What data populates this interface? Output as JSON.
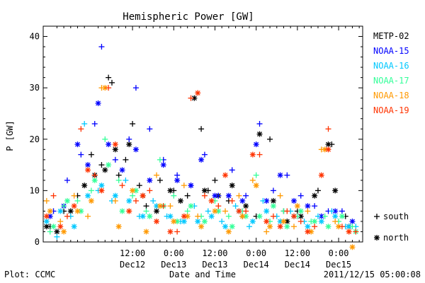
{
  "chart_data": {
    "type": "scatter",
    "title": "Hemispheric Power [GW]",
    "ylabel": "P [GW]",
    "xlabel": "Date and Time",
    "ylim": [
      0,
      42
    ],
    "yticks": [
      0,
      10,
      20,
      30,
      40
    ],
    "xlim_hours": [
      -14,
      79
    ],
    "x_unit": "hours from 2011-12-12 00:00 UT",
    "xticks": [
      {
        "x": 12,
        "time": "12:00",
        "date": "Dec12"
      },
      {
        "x": 24,
        "time": "0:00",
        "date": "Dec13"
      },
      {
        "x": 36,
        "time": "12:00",
        "date": "Dec13"
      },
      {
        "x": 48,
        "time": "0:00",
        "date": "Dec14"
      },
      {
        "x": 60,
        "time": "12:00",
        "date": "Dec14"
      },
      {
        "x": 72,
        "time": "0:00",
        "date": "Dec15"
      }
    ],
    "grid": false,
    "legend_position": "right",
    "markers": {
      "south": "+",
      "north": "*"
    },
    "marker_legend": [
      {
        "symbol": "+",
        "label": "south"
      },
      {
        "symbol": "*",
        "label": "north"
      }
    ],
    "footer_left": "Plot: CCMC",
    "footer_right": "2011/12/15 05:00:08",
    "series": [
      {
        "name": "METP-02",
        "color": "#000000",
        "south": [
          [
            -12,
            3
          ],
          [
            -8,
            6
          ],
          [
            -4,
            9
          ],
          [
            0,
            17
          ],
          [
            3,
            15
          ],
          [
            5,
            32
          ],
          [
            6,
            31
          ],
          [
            8,
            13
          ],
          [
            10,
            16
          ],
          [
            12,
            23
          ],
          [
            14,
            11
          ],
          [
            16,
            7
          ],
          [
            20,
            12
          ],
          [
            24,
            10
          ],
          [
            28,
            9
          ],
          [
            32,
            22
          ],
          [
            34,
            10
          ],
          [
            36,
            12
          ],
          [
            40,
            8
          ],
          [
            44,
            5
          ],
          [
            48,
            5
          ],
          [
            52,
            20
          ],
          [
            56,
            6
          ],
          [
            60,
            6
          ],
          [
            66,
            10
          ],
          [
            70,
            19
          ],
          [
            74,
            5
          ]
        ],
        "north": [
          [
            -13,
            3
          ],
          [
            -10,
            2
          ],
          [
            -6,
            6
          ],
          [
            -2,
            11
          ],
          [
            1,
            13
          ],
          [
            4,
            14
          ],
          [
            7,
            18
          ],
          [
            11,
            19
          ],
          [
            15,
            9
          ],
          [
            19,
            6
          ],
          [
            23,
            10
          ],
          [
            26,
            8
          ],
          [
            30,
            28
          ],
          [
            33,
            10
          ],
          [
            37,
            9
          ],
          [
            41,
            11
          ],
          [
            45,
            7
          ],
          [
            49,
            21
          ],
          [
            53,
            8
          ],
          [
            57,
            4
          ],
          [
            61,
            5
          ],
          [
            65,
            9
          ],
          [
            69,
            19
          ],
          [
            71,
            10
          ],
          [
            75,
            3
          ]
        ]
      },
      {
        "name": "NOAA-15",
        "color": "#0000ff",
        "south": [
          [
            -11,
            6
          ],
          [
            -7,
            12
          ],
          [
            -3,
            17
          ],
          [
            1,
            23
          ],
          [
            3,
            38
          ],
          [
            7,
            16
          ],
          [
            11,
            20
          ],
          [
            13,
            30
          ],
          [
            17,
            22
          ],
          [
            21,
            16
          ],
          [
            25,
            13
          ],
          [
            29,
            11
          ],
          [
            33,
            17
          ],
          [
            37,
            9
          ],
          [
            41,
            14
          ],
          [
            45,
            9
          ],
          [
            49,
            23
          ],
          [
            53,
            10
          ],
          [
            57,
            13
          ],
          [
            61,
            9
          ],
          [
            65,
            7
          ],
          [
            69,
            6
          ],
          [
            73,
            6
          ]
        ],
        "north": [
          [
            -12,
            5
          ],
          [
            -8,
            7
          ],
          [
            -4,
            19
          ],
          [
            -1,
            15
          ],
          [
            2,
            27
          ],
          [
            5,
            19
          ],
          [
            9,
            14
          ],
          [
            13,
            18
          ],
          [
            17,
            12
          ],
          [
            21,
            15
          ],
          [
            25,
            12
          ],
          [
            29,
            11
          ],
          [
            32,
            16
          ],
          [
            36,
            9
          ],
          [
            40,
            9
          ],
          [
            44,
            8
          ],
          [
            48,
            19
          ],
          [
            51,
            8
          ],
          [
            55,
            13
          ],
          [
            59,
            8
          ],
          [
            63,
            7
          ],
          [
            67,
            5
          ],
          [
            71,
            6
          ],
          [
            76,
            4
          ]
        ]
      },
      {
        "name": "NOAA-16",
        "color": "#00c8ff",
        "south": [
          [
            -10,
            1
          ],
          [
            -6,
            5
          ],
          [
            -2,
            23
          ],
          [
            2,
            10
          ],
          [
            6,
            8
          ],
          [
            10,
            12
          ],
          [
            14,
            5
          ],
          [
            18,
            8
          ],
          [
            22,
            5
          ],
          [
            26,
            4
          ],
          [
            30,
            7
          ],
          [
            34,
            6
          ],
          [
            38,
            4
          ],
          [
            42,
            7
          ],
          [
            46,
            3
          ],
          [
            50,
            8
          ],
          [
            54,
            5
          ],
          [
            58,
            6
          ],
          [
            62,
            4
          ],
          [
            66,
            5
          ],
          [
            70,
            6
          ],
          [
            74,
            3
          ],
          [
            77,
            3
          ]
        ],
        "north": [
          [
            -13,
            4
          ],
          [
            -9,
            6
          ],
          [
            -5,
            3
          ],
          [
            -1,
            9
          ],
          [
            3,
            11
          ],
          [
            7,
            9
          ],
          [
            11,
            8
          ],
          [
            15,
            5
          ],
          [
            19,
            7
          ],
          [
            23,
            5
          ],
          [
            27,
            4
          ],
          [
            31,
            4
          ],
          [
            35,
            5
          ],
          [
            39,
            3
          ],
          [
            43,
            6
          ],
          [
            47,
            4
          ],
          [
            51,
            6
          ],
          [
            55,
            4
          ],
          [
            59,
            5
          ],
          [
            63,
            3
          ],
          [
            67,
            4
          ],
          [
            71,
            5
          ],
          [
            75,
            3
          ]
        ]
      },
      {
        "name": "NOAA-17",
        "color": "#33ff99",
        "south": [
          [
            -12,
            2
          ],
          [
            -8,
            7
          ],
          [
            -4,
            8
          ],
          [
            0,
            10
          ],
          [
            4,
            20
          ],
          [
            8,
            12
          ],
          [
            12,
            9
          ],
          [
            16,
            6
          ],
          [
            20,
            16
          ],
          [
            24,
            9
          ],
          [
            28,
            6
          ],
          [
            32,
            5
          ],
          [
            36,
            8
          ],
          [
            40,
            5
          ],
          [
            44,
            6
          ],
          [
            48,
            13
          ],
          [
            52,
            4
          ],
          [
            56,
            6
          ],
          [
            60,
            5
          ],
          [
            64,
            4
          ],
          [
            68,
            5
          ],
          [
            72,
            4
          ],
          [
            76,
            3
          ]
        ],
        "north": [
          [
            -11,
            3
          ],
          [
            -7,
            8
          ],
          [
            -3,
            6
          ],
          [
            1,
            12
          ],
          [
            5,
            15
          ],
          [
            9,
            6
          ],
          [
            13,
            10
          ],
          [
            17,
            5
          ],
          [
            21,
            7
          ],
          [
            25,
            4
          ],
          [
            29,
            7
          ],
          [
            33,
            4
          ],
          [
            37,
            6
          ],
          [
            41,
            3
          ],
          [
            45,
            5
          ],
          [
            49,
            5
          ],
          [
            53,
            7
          ],
          [
            57,
            3
          ],
          [
            61,
            6
          ],
          [
            65,
            4
          ],
          [
            69,
            3
          ],
          [
            73,
            5
          ],
          [
            77,
            2
          ]
        ]
      },
      {
        "name": "NOAA-18",
        "color": "#ff9900",
        "south": [
          [
            -13,
            8
          ],
          [
            -9,
            4
          ],
          [
            -5,
            9
          ],
          [
            -1,
            5
          ],
          [
            3,
            30
          ],
          [
            7,
            8
          ],
          [
            11,
            6
          ],
          [
            15,
            9
          ],
          [
            19,
            13
          ],
          [
            23,
            7
          ],
          [
            27,
            11
          ],
          [
            31,
            5
          ],
          [
            35,
            8
          ],
          [
            39,
            6
          ],
          [
            43,
            9
          ],
          [
            47,
            12
          ],
          [
            51,
            2
          ],
          [
            55,
            9
          ],
          [
            59,
            3
          ],
          [
            63,
            6
          ],
          [
            67,
            18
          ],
          [
            71,
            4
          ],
          [
            75,
            2
          ]
        ],
        "north": [
          [
            -12,
            6
          ],
          [
            -8,
            2
          ],
          [
            -4,
            6
          ],
          [
            0,
            8
          ],
          [
            4,
            30
          ],
          [
            8,
            3
          ],
          [
            12,
            10
          ],
          [
            16,
            2
          ],
          [
            20,
            7
          ],
          [
            24,
            4
          ],
          [
            28,
            5
          ],
          [
            32,
            3
          ],
          [
            36,
            6
          ],
          [
            40,
            2
          ],
          [
            44,
            5
          ],
          [
            48,
            11
          ],
          [
            52,
            3
          ],
          [
            56,
            4
          ],
          [
            60,
            7
          ],
          [
            64,
            2
          ],
          [
            68,
            18
          ],
          [
            72,
            3
          ],
          [
            76,
            -1
          ]
        ]
      },
      {
        "name": "NOAA-19",
        "color": "#ff3300",
        "south": [
          [
            -11,
            9
          ],
          [
            -7,
            5
          ],
          [
            -3,
            22
          ],
          [
            1,
            13
          ],
          [
            5,
            30
          ],
          [
            9,
            11
          ],
          [
            13,
            8
          ],
          [
            17,
            10
          ],
          [
            21,
            7
          ],
          [
            25,
            2
          ],
          [
            29,
            28
          ],
          [
            33,
            9
          ],
          [
            37,
            7
          ],
          [
            41,
            8
          ],
          [
            45,
            6
          ],
          [
            49,
            17
          ],
          [
            53,
            5
          ],
          [
            57,
            6
          ],
          [
            61,
            4
          ],
          [
            65,
            3
          ],
          [
            69,
            22
          ],
          [
            73,
            3
          ],
          [
            77,
            2
          ]
        ],
        "north": [
          [
            -13,
            5
          ],
          [
            -9,
            3
          ],
          [
            -5,
            7
          ],
          [
            -1,
            14
          ],
          [
            3,
            10
          ],
          [
            7,
            19
          ],
          [
            11,
            6
          ],
          [
            15,
            9
          ],
          [
            19,
            4
          ],
          [
            23,
            2
          ],
          [
            27,
            5
          ],
          [
            31,
            29
          ],
          [
            35,
            8
          ],
          [
            39,
            13
          ],
          [
            43,
            6
          ],
          [
            47,
            17
          ],
          [
            51,
            4
          ],
          [
            55,
            3
          ],
          [
            59,
            5
          ],
          [
            63,
            2
          ],
          [
            67,
            13
          ],
          [
            69,
            18
          ],
          [
            75,
            2
          ]
        ]
      }
    ]
  }
}
